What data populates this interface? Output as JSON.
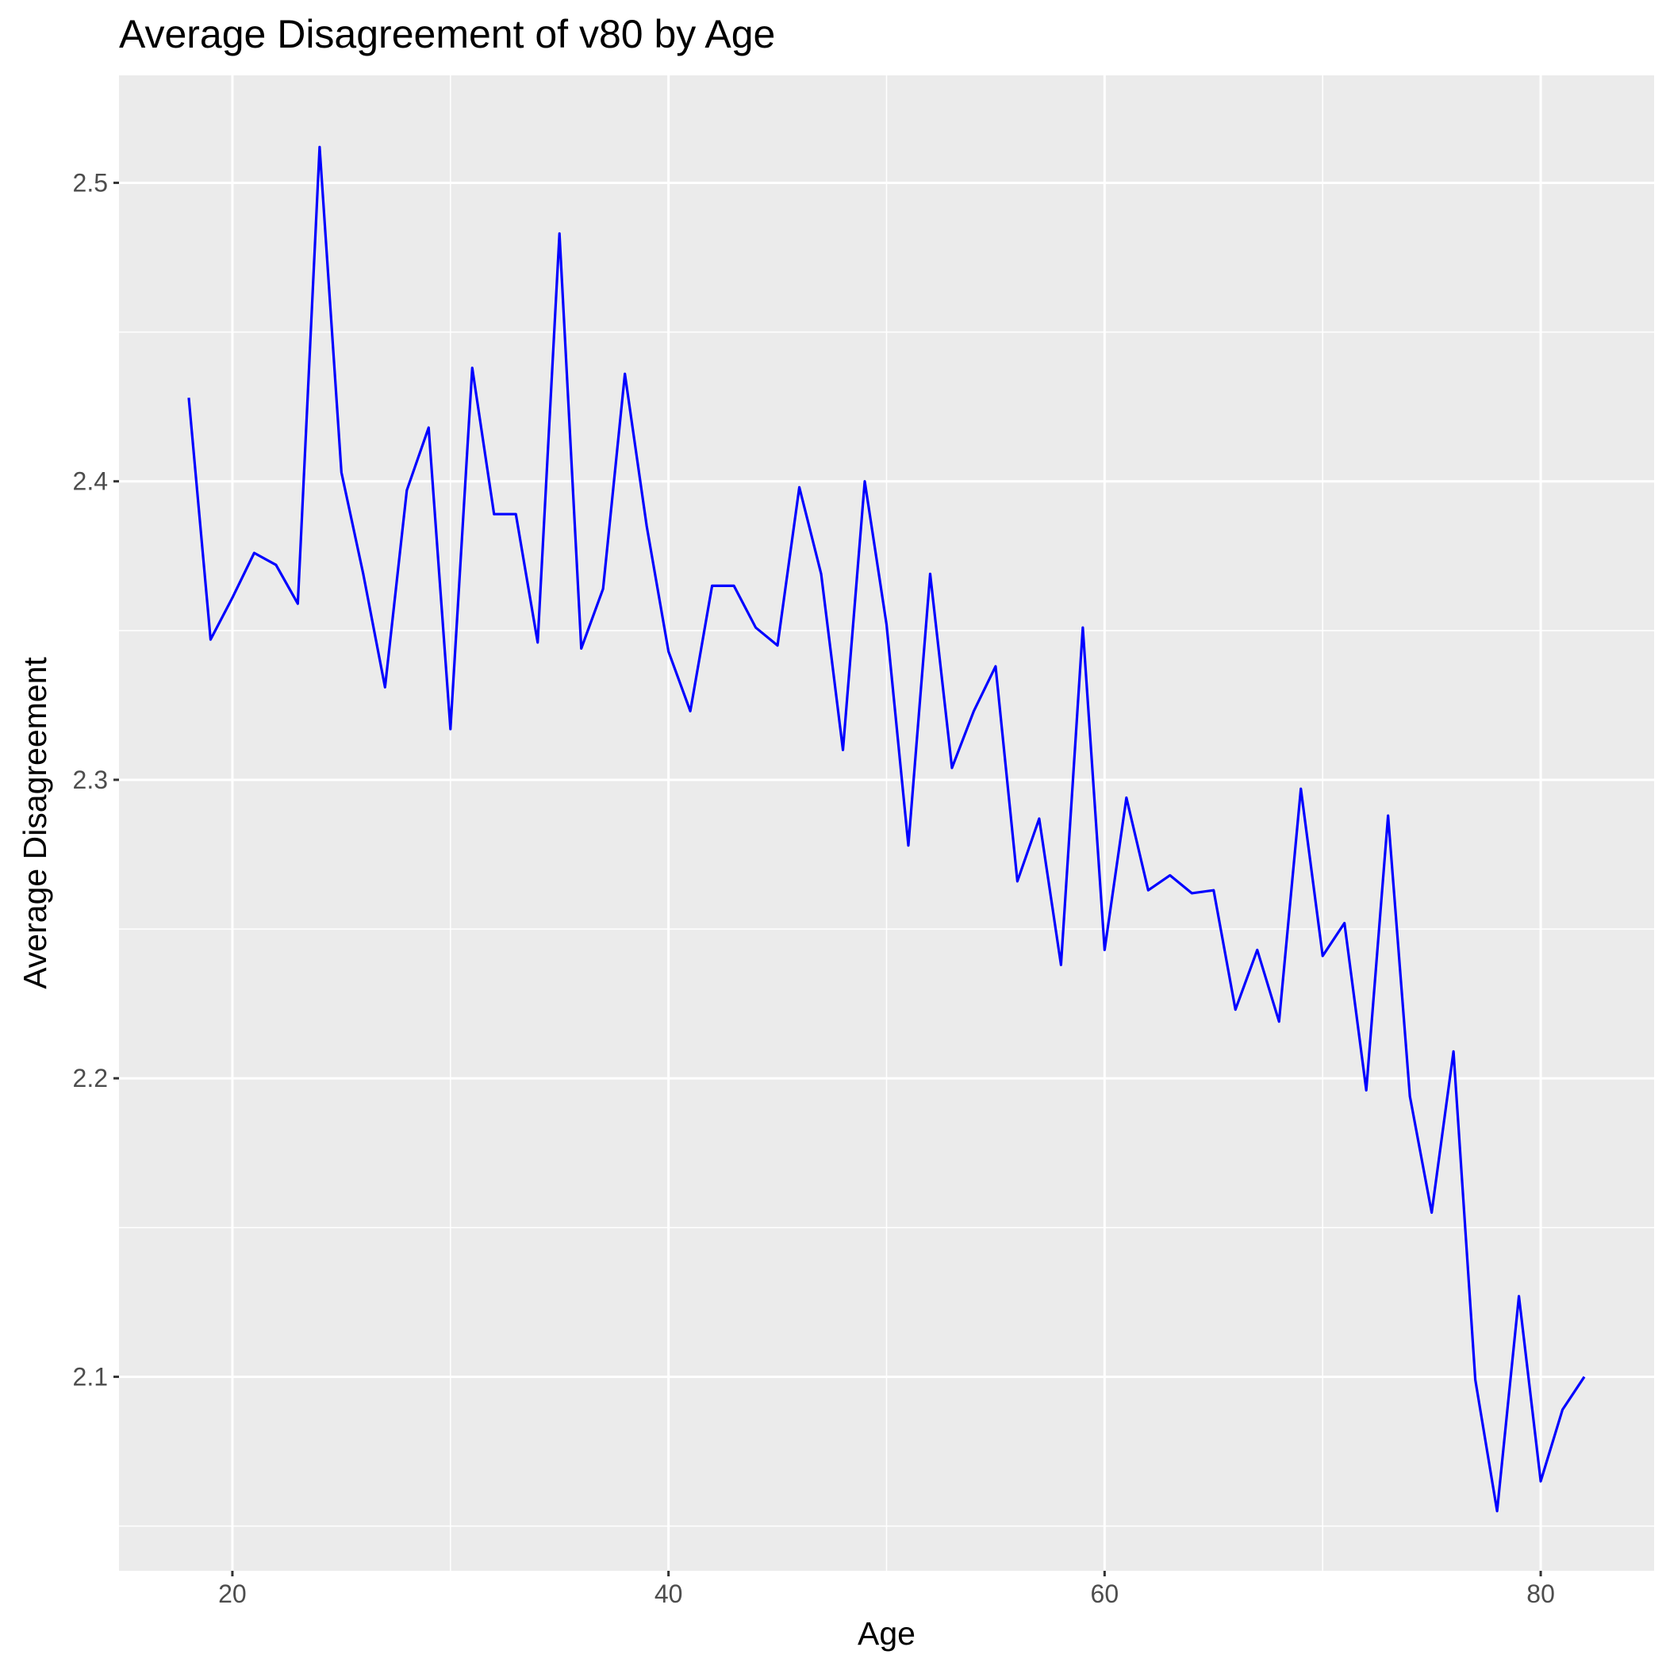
{
  "chart_data": {
    "type": "line",
    "title": "Average Disagreement of v80 by Age",
    "xlabel": "Age",
    "ylabel": "Average Disagreement",
    "xlim": [
      14.8,
      85.2
    ],
    "ylim": [
      2.035,
      2.536
    ],
    "x_ticks": [
      20,
      40,
      60,
      80
    ],
    "x_minor_ticks": [
      30,
      50,
      70
    ],
    "y_ticks": [
      2.1,
      2.2,
      2.3,
      2.4,
      2.5
    ],
    "y_minor_ticks": [
      2.05,
      2.15,
      2.25,
      2.35,
      2.45
    ],
    "grid": true,
    "legend": "none",
    "colors": {
      "line": "#0000ff",
      "panel_background": "#ebebeb",
      "grid": "#ffffff",
      "tick_label": "#4d4d4d",
      "tick_mark": "#333333"
    },
    "series": [
      {
        "x": [
          18,
          19,
          20,
          21,
          22,
          23,
          24,
          25,
          26,
          27,
          28,
          29,
          30,
          31,
          32,
          33,
          34,
          35,
          36,
          37,
          38,
          39,
          40,
          41,
          42,
          43,
          44,
          45,
          46,
          47,
          48,
          49,
          50,
          51,
          52,
          53,
          54,
          55,
          56,
          57,
          58,
          59,
          60,
          61,
          62,
          63,
          64,
          65,
          66,
          67,
          68,
          69,
          70,
          71,
          72,
          73,
          74,
          75,
          76,
          77,
          78,
          79,
          80,
          81,
          82
        ],
        "values": [
          2.428,
          2.347,
          2.361,
          2.376,
          2.372,
          2.359,
          2.512,
          2.403,
          2.369,
          2.331,
          2.397,
          2.418,
          2.317,
          2.438,
          2.389,
          2.389,
          2.346,
          2.483,
          2.344,
          2.364,
          2.436,
          2.385,
          2.343,
          2.323,
          2.365,
          2.365,
          2.351,
          2.345,
          2.398,
          2.369,
          2.31,
          2.4,
          2.352,
          2.278,
          2.369,
          2.304,
          2.323,
          2.338,
          2.266,
          2.287,
          2.238,
          2.351,
          2.243,
          2.294,
          2.263,
          2.268,
          2.262,
          2.263,
          2.223,
          2.243,
          2.219,
          2.297,
          2.241,
          2.252,
          2.196,
          2.288,
          2.194,
          2.155,
          2.209,
          2.099,
          2.055,
          2.127,
          2.065,
          2.089,
          2.1
        ]
      }
    ]
  }
}
